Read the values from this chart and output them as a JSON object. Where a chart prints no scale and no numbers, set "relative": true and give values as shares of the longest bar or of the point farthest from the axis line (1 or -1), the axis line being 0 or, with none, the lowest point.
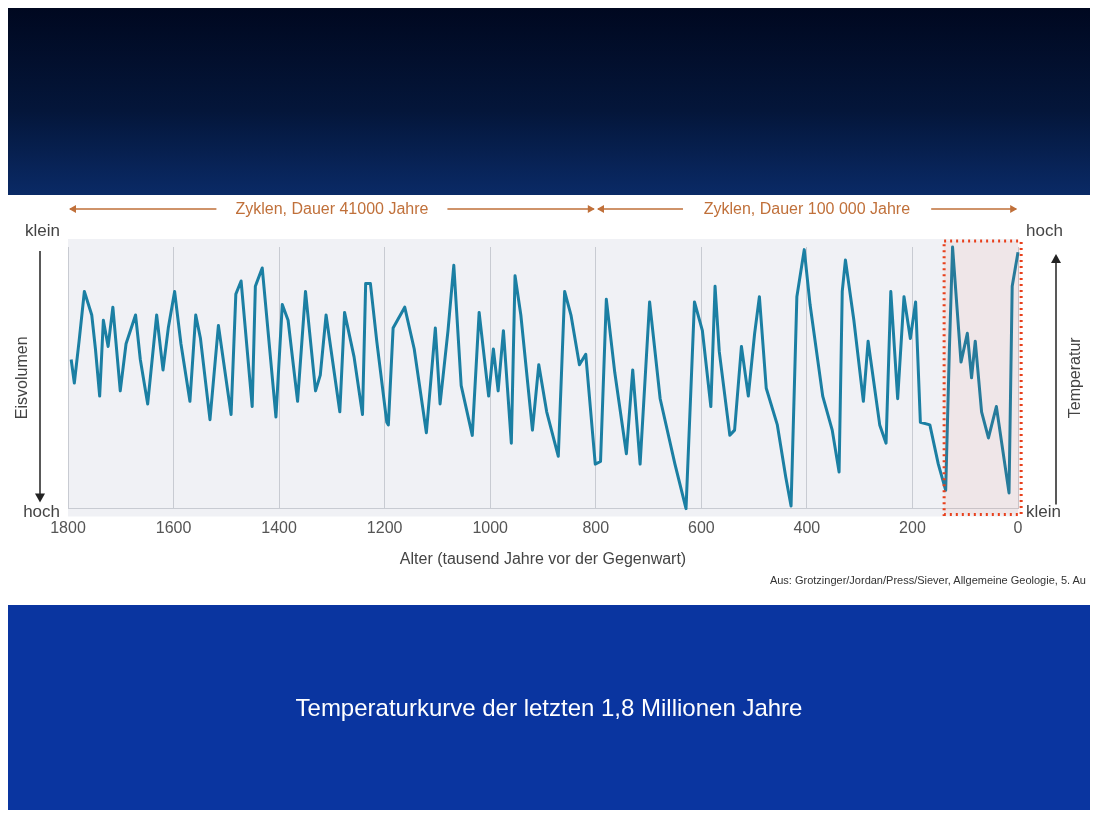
{
  "chart_data": {
    "type": "line",
    "title": "Temperaturkurve der letzten 1,8 Millionen Jahre",
    "xlabel": "Alter (tausend Jahre vor der Gegenwart)",
    "ylabel": "Eisvolumen",
    "y2label": "Temperatur",
    "relative": true,
    "xlim": [
      1800,
      0
    ],
    "xticks": [
      1800,
      1600,
      1400,
      1200,
      1000,
      800,
      600,
      400,
      200,
      0
    ],
    "grid": "x",
    "legend": false,
    "marker": "none",
    "line_style": "solid",
    "bands": [
      {
        "axis": "x",
        "from": 140,
        "to": -6,
        "label": null,
        "color": "#e8401c"
      }
    ],
    "annotations": [
      "klein",
      "hoch",
      "hoch",
      "klein",
      "Zyklen, Dauer 41000 Jahre",
      "Zyklen, Dauer 100 000 Jahre",
      "Aus: Grotzinger/Jordan/Press/Siever, Allgemeine Geologie, 5. Au"
    ],
    "series": [
      {
        "color": "#1b7fa3",
        "x": [
          1794,
          1788,
          1779,
          1769,
          1755,
          1748,
          1740,
          1733,
          1724,
          1715,
          1701,
          1690,
          1672,
          1663,
          1649,
          1632,
          1620,
          1610,
          1598,
          1586,
          1569,
          1558,
          1549,
          1531,
          1515,
          1491,
          1482,
          1472,
          1451,
          1445,
          1432,
          1406,
          1394,
          1383,
          1365,
          1350,
          1331,
          1322,
          1311,
          1285,
          1276,
          1258,
          1242,
          1236,
          1227,
          1215,
          1196,
          1193,
          1184,
          1162,
          1144,
          1121,
          1104,
          1095,
          1080,
          1069,
          1055,
          1034,
          1021,
          1003,
          994,
          985,
          975,
          960,
          953,
          942,
          920,
          908,
          893,
          871,
          859,
          847,
          831,
          819,
          801,
          791,
          780,
          764,
          742,
          730,
          716,
          698,
          678,
          650,
          629,
          613,
          598,
          582,
          574,
          566,
          546,
          537,
          524,
          511,
          499,
          490,
          477,
          456,
          440,
          430,
          419,
          405,
          394,
          370,
          352,
          339,
          333,
          327,
          311,
          293,
          284,
          262,
          250,
          241,
          228,
          216,
          204,
          194,
          185,
          167,
          151,
          137,
          130,
          124,
          108,
          96,
          88,
          81,
          69,
          56,
          41,
          17,
          11,
          0
        ],
        "values": [
          0.57,
          0.48,
          0.64,
          0.83,
          0.74,
          0.61,
          0.43,
          0.72,
          0.62,
          0.77,
          0.45,
          0.63,
          0.74,
          0.57,
          0.4,
          0.74,
          0.53,
          0.69,
          0.83,
          0.63,
          0.41,
          0.74,
          0.65,
          0.34,
          0.7,
          0.36,
          0.82,
          0.87,
          0.39,
          0.85,
          0.92,
          0.35,
          0.78,
          0.72,
          0.41,
          0.83,
          0.45,
          0.51,
          0.74,
          0.37,
          0.75,
          0.58,
          0.36,
          0.86,
          0.86,
          0.64,
          0.33,
          0.32,
          0.69,
          0.77,
          0.61,
          0.29,
          0.69,
          0.4,
          0.68,
          0.93,
          0.47,
          0.28,
          0.75,
          0.43,
          0.61,
          0.45,
          0.68,
          0.25,
          0.89,
          0.74,
          0.3,
          0.55,
          0.37,
          0.2,
          0.83,
          0.74,
          0.55,
          0.59,
          0.17,
          0.18,
          0.8,
          0.52,
          0.21,
          0.53,
          0.17,
          0.79,
          0.42,
          0.17,
          0.0,
          0.79,
          0.68,
          0.39,
          0.85,
          0.6,
          0.28,
          0.3,
          0.62,
          0.43,
          0.67,
          0.81,
          0.46,
          0.32,
          0.12,
          0.01,
          0.81,
          0.99,
          0.78,
          0.43,
          0.3,
          0.14,
          0.83,
          0.95,
          0.72,
          0.41,
          0.64,
          0.32,
          0.25,
          0.83,
          0.42,
          0.81,
          0.65,
          0.79,
          0.33,
          0.32,
          0.17,
          0.07,
          0.61,
          1.0,
          0.56,
          0.67,
          0.5,
          0.64,
          0.37,
          0.27,
          0.39,
          0.06,
          0.85,
          0.98
        ]
      }
    ]
  }
}
